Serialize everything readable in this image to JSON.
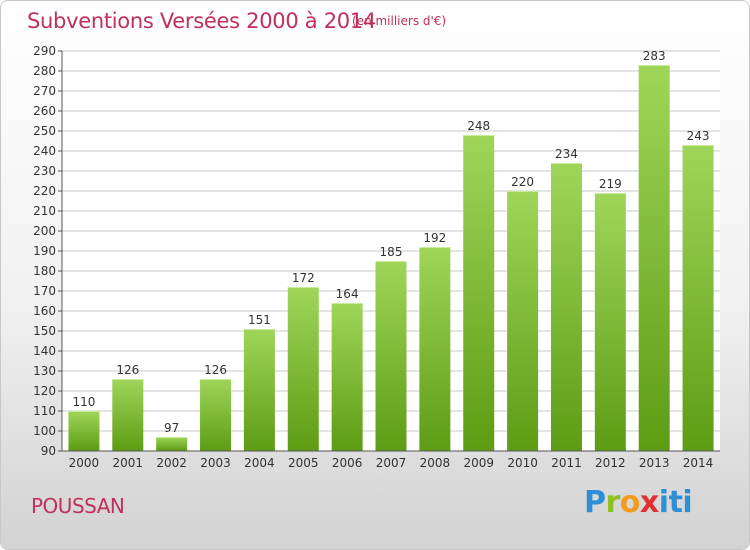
{
  "header": {
    "title": "Subventions Versées 2000 à 2014",
    "unit": "(en milliers d'€)"
  },
  "footer": {
    "commune": "POUSSAN",
    "brand": "Proxiti"
  },
  "colors": {
    "title": "#c0305a",
    "bar_top": "#9fd65a",
    "bar_bottom": "#5e9c14",
    "grid": "#c8c8c8"
  },
  "chart_data": {
    "type": "bar",
    "categories": [
      "2000",
      "2001",
      "2002",
      "2003",
      "2004",
      "2005",
      "2006",
      "2007",
      "2008",
      "2009",
      "2010",
      "2011",
      "2012",
      "2013",
      "2014"
    ],
    "values": [
      110,
      126,
      97,
      126,
      151,
      172,
      164,
      185,
      192,
      248,
      220,
      234,
      219,
      283,
      243
    ],
    "ylim": [
      90,
      290
    ],
    "yticks": [
      90,
      100,
      110,
      120,
      130,
      140,
      150,
      160,
      170,
      180,
      190,
      200,
      210,
      220,
      230,
      240,
      250,
      260,
      270,
      280,
      290
    ],
    "grid": true,
    "title": "Subventions Versées 2000 à 2014",
    "xlabel": "",
    "ylabel": ""
  }
}
